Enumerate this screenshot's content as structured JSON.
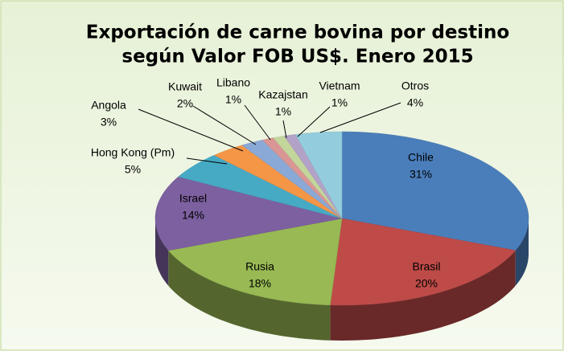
{
  "chart_data": {
    "type": "pie3d",
    "title": [
      "Exportación de carne bovina por destino",
      "según Valor FOB US$. Enero 2015"
    ],
    "categories": [
      "Chile",
      "Brasil",
      "Rusia",
      "Israel",
      "Hong Kong (Pm)",
      "Angola",
      "Kuwait",
      "Libano",
      "Kazajstan",
      "Vietnam",
      "Otros"
    ],
    "values": [
      31,
      20,
      18,
      14,
      5,
      3,
      2,
      1,
      1,
      1,
      4
    ],
    "value_labels": [
      "31%",
      "20%",
      "18%",
      "14%",
      "5%",
      "3%",
      "2%",
      "1%",
      "1%",
      "1%",
      "4%"
    ],
    "colors": [
      "#4a7ebb",
      "#be4b48",
      "#98b954",
      "#7d60a0",
      "#46aac5",
      "#f59647",
      "#8aa9d6",
      "#d99694",
      "#c3d69b",
      "#b3a2c7",
      "#93cddd"
    ]
  }
}
